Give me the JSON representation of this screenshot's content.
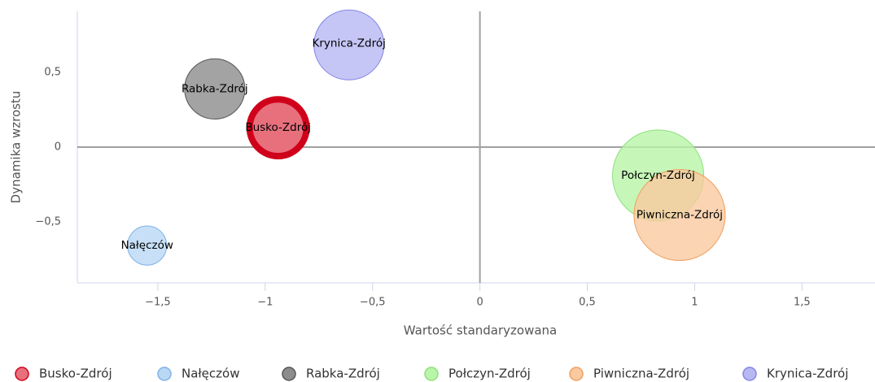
{
  "chart_data": {
    "type": "bubble",
    "x_label": "Wartość standaryzowana",
    "y_label": "Dynamika wzrostu",
    "xlim": [
      -1.875,
      1.84
    ],
    "ylim": [
      -0.91,
      0.91
    ],
    "xticks": [
      {
        "value": -1.5,
        "label": "−1,5"
      },
      {
        "value": -1,
        "label": "−1"
      },
      {
        "value": -0.5,
        "label": "−0,5"
      },
      0,
      {
        "value": 0.5,
        "label": "0,5"
      },
      1,
      {
        "value": 1.5,
        "label": "1,5"
      }
    ],
    "yticks": [
      {
        "value": -0.5,
        "label": "−0,5"
      },
      0,
      {
        "value": 0.5,
        "label": "0,5"
      }
    ],
    "series": [
      {
        "name": "Busko-Zdrój",
        "color": "#e8707d",
        "stroke": "#d0021b",
        "x": [
          -0.94
        ],
        "values": [
          0.13
        ],
        "sizes": [
          14.4
        ]
      },
      {
        "name": "Nałęczów",
        "color": "#b9d8f5",
        "stroke": "#7fb2e5",
        "x": [
          -1.55
        ],
        "values": [
          -0.66
        ],
        "sizes": [
          5.8
        ]
      },
      {
        "name": "Rabka-Zdrój",
        "color": "#8c8c8c",
        "stroke": "#555555",
        "x": [
          -1.235
        ],
        "values": [
          0.39
        ],
        "sizes": [
          13.7
        ]
      },
      {
        "name": "Połczyn-Zdrój",
        "color": "#b8f5a8",
        "stroke": "#8ee07a",
        "x": [
          0.83
        ],
        "values": [
          -0.19
        ],
        "sizes": [
          31.4
        ]
      },
      {
        "name": "Piwniczna-Zdrój",
        "color": "#f9c9a0",
        "stroke": "#f0a060",
        "x": [
          0.93
        ],
        "values": [
          -0.455
        ],
        "sizes": [
          31.4
        ]
      },
      {
        "name": "Krynica-Zdrój",
        "color": "#b7b8f2",
        "stroke": "#8384e6",
        "x": [
          -0.61
        ],
        "values": [
          0.685
        ],
        "sizes": [
          18.5
        ]
      }
    ]
  }
}
